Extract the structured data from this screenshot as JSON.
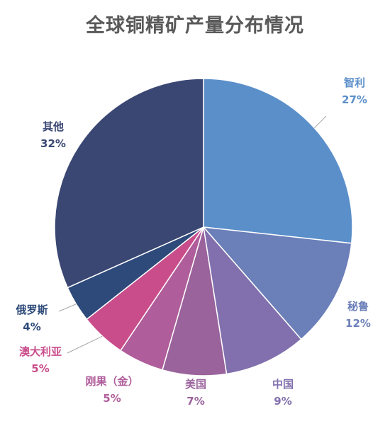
{
  "chart_data": {
    "type": "pie",
    "title": "全球铜精矿产量分布情况",
    "slices": [
      {
        "label": "智利",
        "value": 27,
        "pct_text": "27%",
        "color": "#5b8fca",
        "label_color": "#5b8fca"
      },
      {
        "label": "秘鲁",
        "value": 12,
        "pct_text": "12%",
        "color": "#6b7fb8",
        "label_color": "#6b7fb8"
      },
      {
        "label": "中国",
        "value": 9,
        "pct_text": "9%",
        "color": "#8170ad",
        "label_color": "#8170ad"
      },
      {
        "label": "美国",
        "value": 7,
        "pct_text": "7%",
        "color": "#9a639c",
        "label_color": "#9a639c"
      },
      {
        "label": "刚果（金）",
        "value": 5,
        "pct_text": "5%",
        "color": "#b05d9b",
        "label_color": "#b05d9b"
      },
      {
        "label": "澳大利亚",
        "value": 5,
        "pct_text": "5%",
        "color": "#c94d8b",
        "label_color": "#c94d8b"
      },
      {
        "label": "俄罗斯",
        "value": 4,
        "pct_text": "4%",
        "color": "#2d4a7a",
        "label_color": "#2d4a7a"
      },
      {
        "label": "其他",
        "value": 32,
        "pct_text": "32%",
        "color": "#3a4773",
        "label_color": "#3a4773"
      }
    ]
  }
}
